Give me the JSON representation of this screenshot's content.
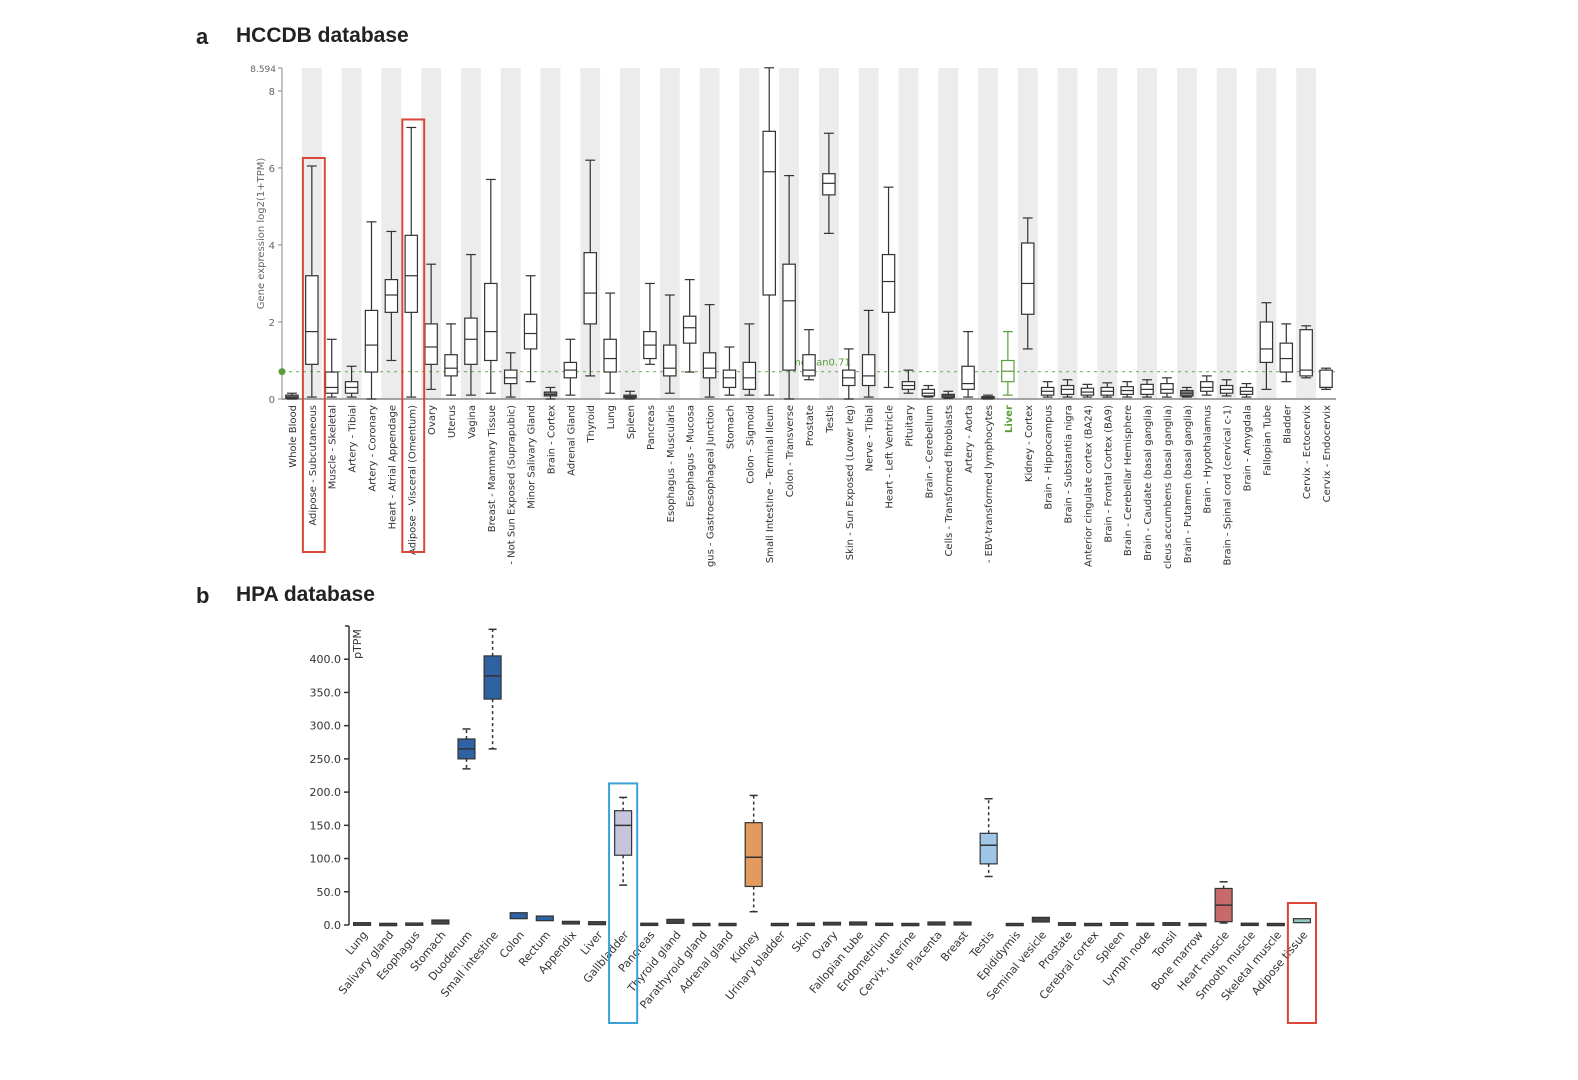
{
  "panels": {
    "a": {
      "letter": "a",
      "title": "HCCDB database"
    },
    "b": {
      "letter": "b",
      "title": "HPA database"
    }
  },
  "colors": {
    "highlight_red": "#d9463a",
    "highlight_blue": "#3aa0d8",
    "reference_green": "#5a9e3a",
    "band_gray": "#ececec"
  },
  "chart_data": [
    {
      "type": "box",
      "title": "HCCDB database",
      "ylabel": "Gene expression log2(1+TPM)",
      "xlabel": "",
      "ylim": [
        0,
        8.594
      ],
      "yticks": [
        0,
        2,
        4,
        6,
        8
      ],
      "ymax_label": "8.594",
      "grid": "alternating vertical bands",
      "reference_line": {
        "label": "median0.71",
        "value": 0.71
      },
      "highlighted_category": "Liver",
      "highlight_boxes": [
        "Adipose - Subcutaneous",
        "Adipose - Visceral (Omentum)"
      ],
      "categories": [
        "Whole Blood",
        "Adipose - Subcutaneous",
        "Muscle - Skeletal",
        "Artery - Tibial",
        "Artery - Coronary",
        "Heart - Atrial Appendage",
        "Adipose - Visceral (Omentum)",
        "Ovary",
        "Uterus",
        "Vagina",
        "Breast - Mammary Tissue",
        "- Not Sun Exposed (Suprapubic)",
        "Minor Salivary Gland",
        "Brain - Cortex",
        "Adrenal Gland",
        "Thyroid",
        "Lung",
        "Spleen",
        "Pancreas",
        "Esophagus - Muscularis",
        "Esophagus - Mucosa",
        "gus - Gastroesophageal Junction",
        "Stomach",
        "Colon - Sigmoid",
        "Small Intestine - Terminal Ileum",
        "Colon - Transverse",
        "Prostate",
        "Testis",
        "Skin - Sun Exposed (Lower leg)",
        "Nerve - Tibial",
        "Heart - Left Ventricle",
        "Pituitary",
        "Brain - Cerebellum",
        "Cells - Transformed fibroblasts",
        "Artery - Aorta",
        "- EBV-transformed lymphocytes",
        "Liver",
        "Kidney - Cortex",
        "Brain - Hippocampus",
        "Brain - Substantia nigra",
        "Anterior cingulate cortex (BA24)",
        "Brain - Frontal Cortex (BA9)",
        "Brain - Cerebellar Hemisphere",
        "Brain - Caudate (basal ganglia)",
        "cleus accumbens (basal ganglia)",
        "Brain - Putamen (basal ganglia)",
        "Brain - Hypothalamus",
        "Brain - Spinal cord (cervical c-1)",
        "Brain - Amygdala",
        "Fallopian Tube",
        "Bladder",
        "Cervix - Ectocervix",
        "Cervix - Endocervix"
      ],
      "boxes": [
        [
          0.0,
          0.02,
          0.05,
          0.1,
          0.15
        ],
        [
          0.05,
          0.9,
          1.75,
          3.2,
          6.05
        ],
        [
          0.05,
          0.15,
          0.3,
          0.7,
          1.55
        ],
        [
          0.05,
          0.15,
          0.3,
          0.45,
          0.85
        ],
        [
          0.0,
          0.7,
          1.4,
          2.3,
          4.6
        ],
        [
          1.0,
          2.25,
          2.7,
          3.1,
          4.35
        ],
        [
          0.05,
          2.25,
          3.2,
          4.25,
          7.05
        ],
        [
          0.25,
          0.9,
          1.35,
          1.95,
          3.5
        ],
        [
          0.1,
          0.6,
          0.8,
          1.15,
          1.95
        ],
        [
          0.1,
          0.9,
          1.55,
          2.1,
          3.75
        ],
        [
          0.15,
          1.0,
          1.75,
          3.0,
          5.7
        ],
        [
          0.05,
          0.4,
          0.55,
          0.75,
          1.2
        ],
        [
          0.45,
          1.3,
          1.7,
          2.2,
          3.2
        ],
        [
          0.0,
          0.08,
          0.12,
          0.18,
          0.3
        ],
        [
          0.1,
          0.55,
          0.75,
          0.95,
          1.55
        ],
        [
          0.6,
          1.95,
          2.75,
          3.8,
          6.2
        ],
        [
          0.15,
          0.7,
          1.05,
          1.55,
          2.75
        ],
        [
          0.0,
          0.03,
          0.06,
          0.1,
          0.2
        ],
        [
          0.9,
          1.05,
          1.4,
          1.75,
          3.0
        ],
        [
          0.15,
          0.6,
          0.8,
          1.4,
          2.7
        ],
        [
          0.7,
          1.45,
          1.85,
          2.15,
          3.1
        ],
        [
          0.05,
          0.55,
          0.8,
          1.2,
          2.45
        ],
        [
          0.1,
          0.3,
          0.55,
          0.75,
          1.35
        ],
        [
          0.1,
          0.25,
          0.55,
          0.95,
          1.95
        ],
        [
          0.1,
          2.7,
          5.9,
          6.95,
          8.6
        ],
        [
          0.0,
          0.75,
          2.55,
          3.5,
          5.8
        ],
        [
          0.5,
          0.6,
          0.75,
          1.15,
          1.8
        ],
        [
          4.3,
          5.3,
          5.6,
          5.85,
          6.9
        ],
        [
          0.0,
          0.35,
          0.55,
          0.75,
          1.3
        ],
        [
          0.05,
          0.35,
          0.6,
          1.15,
          2.3
        ],
        [
          0.3,
          2.25,
          3.05,
          3.75,
          5.5
        ],
        [
          0.15,
          0.25,
          0.35,
          0.45,
          0.75
        ],
        [
          0.05,
          0.08,
          0.15,
          0.25,
          0.35
        ],
        [
          0.02,
          0.04,
          0.08,
          0.12,
          0.2
        ],
        [
          0.05,
          0.25,
          0.4,
          0.85,
          1.75
        ],
        [
          0.0,
          0.02,
          0.04,
          0.06,
          0.1
        ],
        [
          0.1,
          0.45,
          0.72,
          1.0,
          1.75
        ],
        [
          1.3,
          2.2,
          3.0,
          4.05,
          4.7
        ],
        [
          0.05,
          0.1,
          0.2,
          0.3,
          0.45
        ],
        [
          0.05,
          0.12,
          0.25,
          0.35,
          0.5
        ],
        [
          0.05,
          0.1,
          0.18,
          0.28,
          0.38
        ],
        [
          0.05,
          0.1,
          0.2,
          0.3,
          0.42
        ],
        [
          0.05,
          0.12,
          0.22,
          0.32,
          0.45
        ],
        [
          0.05,
          0.12,
          0.25,
          0.38,
          0.5
        ],
        [
          0.05,
          0.15,
          0.25,
          0.4,
          0.55
        ],
        [
          0.05,
          0.08,
          0.15,
          0.22,
          0.3
        ],
        [
          0.1,
          0.2,
          0.3,
          0.45,
          0.6
        ],
        [
          0.08,
          0.15,
          0.25,
          0.35,
          0.5
        ],
        [
          0.05,
          0.12,
          0.2,
          0.3,
          0.4
        ],
        [
          0.25,
          0.95,
          1.3,
          2.0,
          2.5
        ],
        [
          0.45,
          0.7,
          1.05,
          1.45,
          1.95
        ],
        [
          0.55,
          0.6,
          0.75,
          1.8,
          1.9
        ],
        [
          0.25,
          0.3,
          0.3,
          0.75,
          0.8
        ]
      ],
      "box_order": "[min, q1, median, q3, max]"
    },
    {
      "type": "box",
      "title": "HPA database",
      "ylabel": "pTPM",
      "xlabel": "",
      "ylim": [
        0,
        450
      ],
      "yticks": [
        0,
        50,
        100,
        150,
        200,
        250,
        300,
        350,
        400
      ],
      "ytick_labels": [
        "0.0",
        "50.0",
        "100.0",
        "150.0",
        "200.0",
        "250.0",
        "300.0",
        "350.0",
        "400.0"
      ],
      "grid": false,
      "highlight_boxes": [
        {
          "category": "Gallbladder",
          "color": "blue"
        },
        {
          "category": "Adipose tissue",
          "color": "red"
        }
      ],
      "categories": [
        "Lung",
        "Salivary gland",
        "Esophagus",
        "Stomach",
        "Duodenum",
        "Small intestine",
        "Colon",
        "Rectum",
        "Appendix",
        "Liver",
        "Gallbladder",
        "Pancreas",
        "Thyroid gland",
        "Parathyroid gland",
        "Adrenal gland",
        "Kidney",
        "Urinary bladder",
        "Skin",
        "Ovary",
        "Fallopian tube",
        "Endometrium",
        "Cervix, uterine",
        "Placenta",
        "Breast",
        "Testis",
        "Epididymis",
        "Seminal vesicle",
        "Prostate",
        "Cerebral cortex",
        "Spleen",
        "Lymph node",
        "Tonsil",
        "Bone marrow",
        "Heart muscle",
        "Smooth muscle",
        "Skeletal muscle",
        "Adipose tissue"
      ],
      "boxes": [
        [
          1,
          1,
          1.5,
          2,
          2.5
        ],
        [
          0.5,
          0.5,
          0.8,
          1,
          1.2
        ],
        [
          0.8,
          1,
          1.2,
          1.5,
          2
        ],
        [
          2,
          3,
          4,
          6,
          10
        ],
        [
          235,
          250,
          265,
          280,
          295
        ],
        [
          265,
          340,
          375,
          405,
          445
        ],
        [
          8,
          11,
          14,
          17,
          27
        ],
        [
          6,
          8,
          10,
          12,
          14
        ],
        [
          2,
          3,
          3.5,
          4,
          5
        ],
        [
          1,
          2,
          3,
          3.5,
          4
        ],
        [
          60,
          105,
          150,
          172,
          192
        ],
        [
          0.5,
          0.8,
          1,
          1.2,
          1.5
        ],
        [
          3,
          4,
          5,
          7,
          10
        ],
        [
          0.3,
          0.5,
          0.7,
          0.9,
          1
        ],
        [
          0.3,
          0.5,
          0.7,
          0.9,
          1
        ],
        [
          20,
          58,
          102,
          154,
          195
        ],
        [
          0.3,
          0.5,
          0.7,
          0.9,
          1
        ],
        [
          0.5,
          0.8,
          1,
          1.3,
          1.5
        ],
        [
          1,
          1.5,
          2,
          2.5,
          3
        ],
        [
          1,
          1.5,
          2.5,
          3,
          4
        ],
        [
          0.5,
          0.8,
          1,
          1.2,
          1.5
        ],
        [
          0.3,
          0.5,
          0.7,
          0.9,
          1
        ],
        [
          1,
          1.5,
          2.5,
          3,
          4
        ],
        [
          1,
          1.5,
          2.5,
          3,
          4
        ],
        [
          73,
          92,
          120,
          138,
          190
        ],
        [
          0.3,
          0.5,
          0.7,
          0.9,
          1
        ],
        [
          5,
          6,
          8,
          10,
          11
        ],
        [
          0.5,
          1,
          1.5,
          2,
          2.5
        ],
        [
          0.3,
          0.5,
          0.7,
          0.9,
          1
        ],
        [
          0.5,
          1,
          1.5,
          2,
          2.5
        ],
        [
          0.5,
          0.8,
          1,
          1.2,
          1.5
        ],
        [
          0.5,
          1,
          1.5,
          2,
          2.5
        ],
        [
          0.3,
          0.5,
          0.7,
          0.9,
          1
        ],
        [
          3,
          5,
          30,
          55,
          65
        ],
        [
          0.5,
          0.8,
          1,
          1.2,
          1.5
        ],
        [
          0.3,
          0.5,
          0.7,
          0.9,
          1
        ],
        [
          4,
          5,
          6,
          8,
          9
        ]
      ],
      "box_colors": {
        "Duodenum": "#2f62a3",
        "Small intestine": "#2f62a3",
        "Colon": "#2f62a3",
        "Rectum": "#2f62a3",
        "Gallbladder": "#c8c4dc",
        "Kidney": "#e39a5f",
        "Testis": "#9fc6e6",
        "Heart muscle": "#c96a6a",
        "Adipose tissue": "#8fc7c0"
      },
      "box_order": "[min, q1, median, q3, max]"
    }
  ]
}
